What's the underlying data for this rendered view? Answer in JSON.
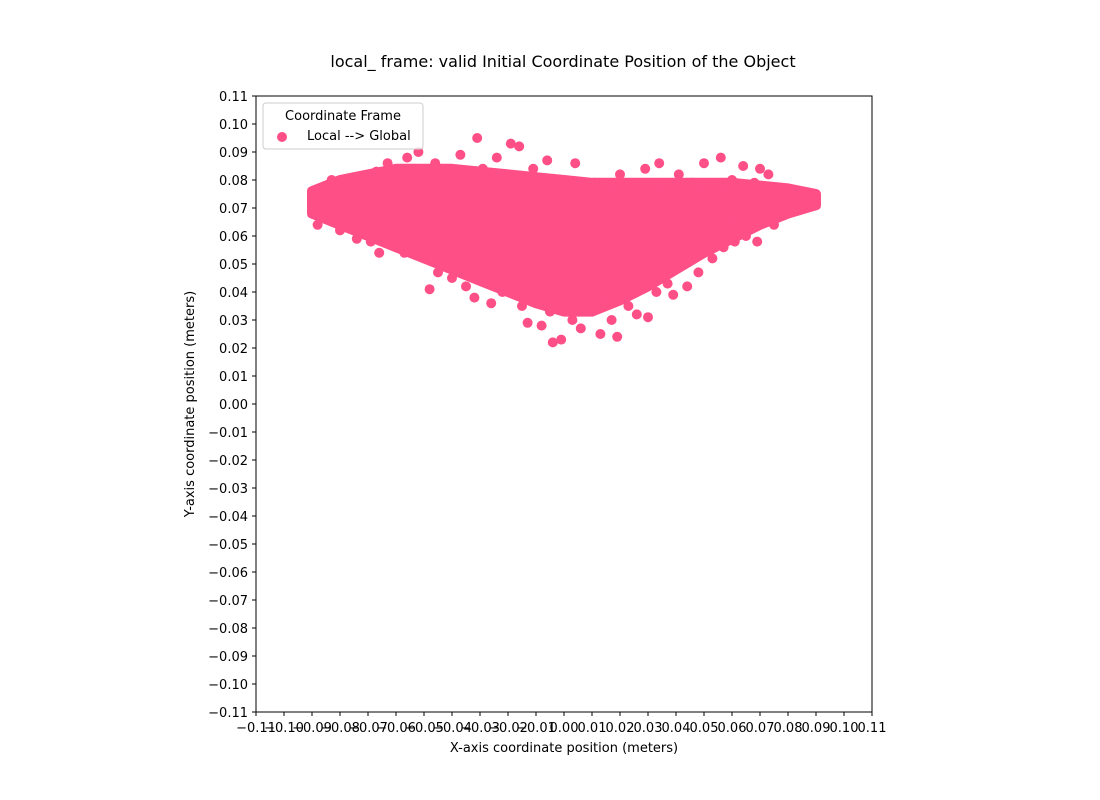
{
  "chart_data": {
    "type": "scatter",
    "title": "local_ frame: valid Initial Coordinate Position of the Object",
    "xlabel": "X-axis coordinate position (meters)",
    "ylabel": "Y-axis coordinate position (meters)",
    "xlim": [
      -0.11,
      0.11
    ],
    "ylim": [
      -0.11,
      0.11
    ],
    "x_ticks": [
      "−0.11",
      "−0.10",
      "−0.09",
      "−0.08",
      "−0.07",
      "−0.06",
      "−0.05",
      "−0.04",
      "−0.03",
      "−0.02",
      "−0.01",
      "0.00",
      "0.01",
      "0.02",
      "0.03",
      "0.04",
      "0.05",
      "0.06",
      "0.07",
      "0.08",
      "0.09",
      "0.10",
      "0.11"
    ],
    "y_ticks": [
      "−0.11",
      "−0.10",
      "−0.09",
      "−0.08",
      "−0.07",
      "−0.06",
      "−0.05",
      "−0.04",
      "−0.03",
      "−0.02",
      "−0.01",
      "0.00",
      "0.01",
      "0.02",
      "0.03",
      "0.04",
      "0.05",
      "0.06",
      "0.07",
      "0.08",
      "0.09",
      "0.10",
      "0.11"
    ],
    "tick_values": [
      -0.11,
      -0.1,
      -0.09,
      -0.08,
      -0.07,
      -0.06,
      -0.05,
      -0.04,
      -0.03,
      -0.02,
      -0.01,
      0.0,
      0.01,
      0.02,
      0.03,
      0.04,
      0.05,
      0.06,
      0.07,
      0.08,
      0.09,
      0.1,
      0.11
    ],
    "grid": false,
    "legend": {
      "title": "Coordinate Frame",
      "placement": "upper-left",
      "entries": [
        "Local --> Global"
      ]
    },
    "series": [
      {
        "name": "Local --> Global",
        "color": "#ff4f87",
        "points": [
          [
            -0.09,
            0.073
          ],
          [
            -0.089,
            0.07
          ],
          [
            -0.088,
            0.064
          ],
          [
            -0.086,
            0.076
          ],
          [
            -0.084,
            0.066
          ],
          [
            -0.083,
            0.08
          ],
          [
            -0.082,
            0.071
          ],
          [
            -0.08,
            0.062
          ],
          [
            -0.079,
            0.077
          ],
          [
            -0.078,
            0.068
          ],
          [
            -0.077,
            0.074
          ],
          [
            -0.076,
            0.079
          ],
          [
            -0.075,
            0.065
          ],
          [
            -0.074,
            0.059
          ],
          [
            -0.073,
            0.081
          ],
          [
            -0.072,
            0.072
          ],
          [
            -0.071,
            0.067
          ],
          [
            -0.07,
            0.076
          ],
          [
            -0.069,
            0.058
          ],
          [
            -0.068,
            0.063
          ],
          [
            -0.067,
            0.083
          ],
          [
            -0.066,
            0.054
          ],
          [
            -0.065,
            0.07
          ],
          [
            -0.064,
            0.078
          ],
          [
            -0.063,
            0.086
          ],
          [
            -0.062,
            0.06
          ],
          [
            -0.061,
            0.074
          ],
          [
            -0.06,
            0.056
          ],
          [
            -0.059,
            0.068
          ],
          [
            -0.058,
            0.082
          ],
          [
            -0.057,
            0.054
          ],
          [
            -0.056,
            0.088
          ],
          [
            -0.055,
            0.072
          ],
          [
            -0.054,
            0.063
          ],
          [
            -0.053,
            0.079
          ],
          [
            -0.052,
            0.09
          ],
          [
            -0.051,
            0.058
          ],
          [
            -0.05,
            0.052
          ],
          [
            -0.049,
            0.075
          ],
          [
            -0.048,
            0.041
          ],
          [
            -0.047,
            0.069
          ],
          [
            -0.046,
            0.086
          ],
          [
            -0.045,
            0.047
          ],
          [
            -0.044,
            0.064
          ],
          [
            -0.043,
            0.077
          ],
          [
            -0.042,
            0.055
          ],
          [
            -0.041,
            0.083
          ],
          [
            -0.04,
            0.045
          ],
          [
            -0.039,
            0.071
          ],
          [
            -0.038,
            0.06
          ],
          [
            -0.037,
            0.089
          ],
          [
            -0.036,
            0.05
          ],
          [
            -0.035,
            0.042
          ],
          [
            -0.034,
            0.078
          ],
          [
            -0.033,
            0.066
          ],
          [
            -0.032,
            0.038
          ],
          [
            -0.031,
            0.095
          ],
          [
            -0.03,
            0.057
          ],
          [
            -0.029,
            0.084
          ],
          [
            -0.028,
            0.046
          ],
          [
            -0.027,
            0.072
          ],
          [
            -0.026,
            0.036
          ],
          [
            -0.025,
            0.061
          ],
          [
            -0.024,
            0.088
          ],
          [
            -0.023,
            0.052
          ],
          [
            -0.022,
            0.04
          ],
          [
            -0.021,
            0.081
          ],
          [
            -0.02,
            0.068
          ],
          [
            -0.019,
            0.093
          ],
          [
            -0.018,
            0.044
          ],
          [
            -0.017,
            0.058
          ],
          [
            -0.016,
            0.092
          ],
          [
            -0.015,
            0.035
          ],
          [
            -0.014,
            0.075
          ],
          [
            -0.013,
            0.029
          ],
          [
            -0.012,
            0.05
          ],
          [
            -0.011,
            0.084
          ],
          [
            -0.01,
            0.04
          ],
          [
            -0.009,
            0.066
          ],
          [
            -0.008,
            0.028
          ],
          [
            -0.007,
            0.056
          ],
          [
            -0.006,
            0.087
          ],
          [
            -0.005,
            0.033
          ],
          [
            -0.004,
            0.022
          ],
          [
            -0.003,
            0.07
          ],
          [
            -0.002,
            0.045
          ],
          [
            -0.001,
            0.023
          ],
          [
            0.0,
            0.08
          ],
          [
            0.001,
            0.038
          ],
          [
            0.002,
            0.06
          ],
          [
            0.003,
            0.03
          ],
          [
            0.004,
            0.086
          ],
          [
            0.005,
            0.052
          ],
          [
            0.006,
            0.027
          ],
          [
            0.007,
            0.072
          ],
          [
            0.008,
            0.041
          ],
          [
            0.009,
            0.063
          ],
          [
            0.01,
            0.033
          ],
          [
            0.011,
            0.079
          ],
          [
            0.012,
            0.048
          ],
          [
            0.013,
            0.025
          ],
          [
            0.014,
            0.068
          ],
          [
            0.015,
            0.038
          ],
          [
            0.016,
            0.074
          ],
          [
            0.017,
            0.03
          ],
          [
            0.018,
            0.056
          ],
          [
            0.019,
            0.024
          ],
          [
            0.02,
            0.082
          ],
          [
            0.021,
            0.044
          ],
          [
            0.022,
            0.065
          ],
          [
            0.023,
            0.035
          ],
          [
            0.024,
            0.077
          ],
          [
            0.025,
            0.052
          ],
          [
            0.026,
            0.032
          ],
          [
            0.027,
            0.07
          ],
          [
            0.028,
            0.045
          ],
          [
            0.029,
            0.084
          ],
          [
            0.03,
            0.031
          ],
          [
            0.031,
            0.06
          ],
          [
            0.032,
            0.075
          ],
          [
            0.033,
            0.04
          ],
          [
            0.034,
            0.086
          ],
          [
            0.035,
            0.055
          ],
          [
            0.036,
            0.068
          ],
          [
            0.037,
            0.043
          ],
          [
            0.038,
            0.078
          ],
          [
            0.039,
            0.039
          ],
          [
            0.04,
            0.062
          ],
          [
            0.041,
            0.082
          ],
          [
            0.042,
            0.05
          ],
          [
            0.043,
            0.072
          ],
          [
            0.044,
            0.042
          ],
          [
            0.045,
            0.066
          ],
          [
            0.046,
            0.079
          ],
          [
            0.047,
            0.054
          ],
          [
            0.048,
            0.047
          ],
          [
            0.049,
            0.074
          ],
          [
            0.05,
            0.086
          ],
          [
            0.051,
            0.06
          ],
          [
            0.052,
            0.07
          ],
          [
            0.053,
            0.052
          ],
          [
            0.054,
            0.078
          ],
          [
            0.055,
            0.063
          ],
          [
            0.056,
            0.088
          ],
          [
            0.057,
            0.056
          ],
          [
            0.058,
            0.074
          ],
          [
            0.059,
            0.067
          ],
          [
            0.06,
            0.08
          ],
          [
            0.061,
            0.058
          ],
          [
            0.062,
            0.072
          ],
          [
            0.063,
            0.065
          ],
          [
            0.064,
            0.085
          ],
          [
            0.065,
            0.06
          ],
          [
            0.066,
            0.076
          ],
          [
            0.067,
            0.069
          ],
          [
            0.068,
            0.079
          ],
          [
            0.069,
            0.058
          ],
          [
            0.07,
            0.084
          ],
          [
            0.071,
            0.073
          ],
          [
            0.072,
            0.066
          ],
          [
            0.073,
            0.082
          ],
          [
            0.074,
            0.07
          ],
          [
            0.075,
            0.064
          ],
          [
            0.076,
            0.077
          ],
          [
            0.077,
            0.072
          ],
          [
            0.078,
            0.068
          ],
          [
            0.079,
            0.075
          ],
          [
            0.08,
            0.071
          ],
          [
            0.081,
            0.073
          ],
          [
            0.082,
            0.069
          ],
          [
            0.083,
            0.075
          ],
          [
            0.084,
            0.072
          ],
          [
            0.085,
            0.07
          ],
          [
            0.086,
            0.075
          ],
          [
            0.087,
            0.073
          ],
          [
            0.088,
            0.072
          ],
          [
            0.089,
            0.075
          ]
        ],
        "density_band": {
          "x": [
            -0.09,
            -0.08,
            -0.07,
            -0.06,
            -0.05,
            -0.04,
            -0.03,
            -0.02,
            -0.01,
            0.0,
            0.01,
            0.02,
            0.03,
            0.04,
            0.05,
            0.06,
            0.07,
            0.08,
            0.09
          ],
          "y_low": [
            0.068,
            0.064,
            0.06,
            0.056,
            0.052,
            0.048,
            0.044,
            0.04,
            0.036,
            0.033,
            0.033,
            0.037,
            0.042,
            0.048,
            0.054,
            0.059,
            0.064,
            0.068,
            0.071
          ],
          "y_high": [
            0.076,
            0.08,
            0.082,
            0.084,
            0.084,
            0.084,
            0.083,
            0.082,
            0.081,
            0.08,
            0.079,
            0.079,
            0.079,
            0.079,
            0.079,
            0.079,
            0.078,
            0.077,
            0.075
          ]
        }
      }
    ]
  }
}
